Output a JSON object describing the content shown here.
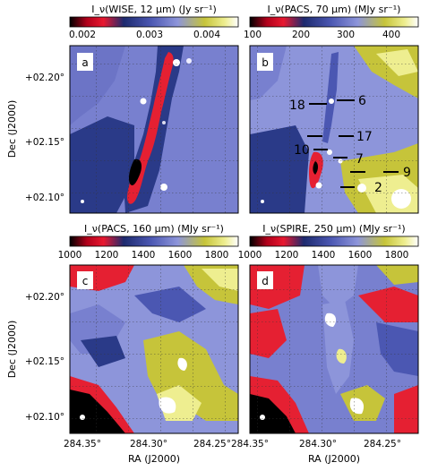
{
  "chart_data": [
    {
      "type": "heatmap",
      "panel_label": "a",
      "colorbar": {
        "title": "I_ν(WISE, 12 μm) (Jy sr⁻¹)",
        "ticks": [
          "0.002",
          "0.003",
          "0.004"
        ]
      },
      "ylabel": "Dec (J2000)",
      "yticks": [
        "+02.20°",
        "+02.15°",
        "+02.10°"
      ],
      "xlabel": "",
      "xticks": []
    },
    {
      "type": "heatmap",
      "panel_label": "b",
      "colorbar": {
        "title": "I_ν(PACS, 70 μm) (MJy sr⁻¹)",
        "ticks": [
          "100",
          "200",
          "300",
          "400"
        ]
      },
      "source_labels": [
        "18",
        "6",
        "17",
        "10",
        "7",
        "9",
        "2"
      ]
    },
    {
      "type": "heatmap",
      "panel_label": "c",
      "colorbar": {
        "title": "I_ν(PACS, 160 μm) (MJy sr⁻¹)",
        "ticks": [
          "1000",
          "1200",
          "1400",
          "1600",
          "1800"
        ]
      },
      "ylabel": "Dec (J2000)",
      "yticks": [
        "+02.20°",
        "+02.15°",
        "+02.10°"
      ],
      "xlabel": "RA (J2000)",
      "xticks": [
        "284.35°",
        "284.30°",
        "284.25°"
      ]
    },
    {
      "type": "heatmap",
      "panel_label": "d",
      "colorbar": {
        "title": "I_ν(SPIRE, 250 μm) (MJy sr⁻¹)",
        "ticks": [
          "1000",
          "1200",
          "1400",
          "1600",
          "1800"
        ]
      },
      "xlabel": "RA (J2000)",
      "xticks": [
        "284.35°",
        "284.30°",
        "284.25°"
      ]
    }
  ]
}
